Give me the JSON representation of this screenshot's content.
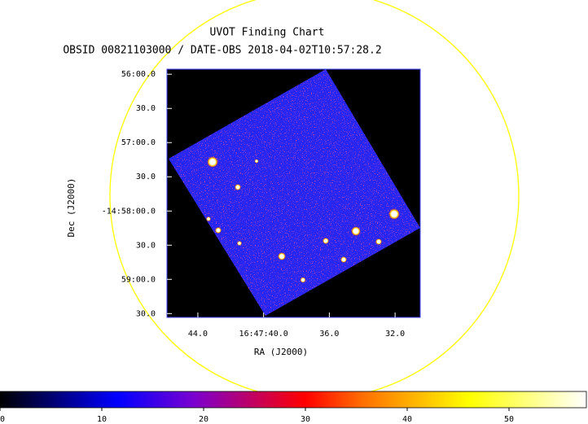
{
  "chart_data": {
    "type": "image",
    "title": "UVOT Finding Chart",
    "subtitle": "OBSID 00821103000 / DATE-OBS 2018-04-02T10:57:28.2",
    "xlabel": "RA (J2000)",
    "ylabel": "Dec (J2000)",
    "xlim": [
      45.88,
      30.47
    ],
    "xticks": [
      {
        "value": 44,
        "label": "44.0"
      },
      {
        "value": 40,
        "label": "16:47:40.0"
      },
      {
        "value": 36,
        "label": "36.0"
      },
      {
        "value": 32,
        "label": "32.0"
      }
    ],
    "ylim": [
      -14.9321,
      -14.9926
    ],
    "yticks": [
      {
        "value": -14.93333,
        "label": "56:00.0"
      },
      {
        "value": -14.94167,
        "label": "30.0"
      },
      {
        "value": -14.95,
        "label": "57:00.0"
      },
      {
        "value": -14.95833,
        "label": "30.0"
      },
      {
        "value": -14.96667,
        "label": "-14:58:00.0"
      },
      {
        "value": -14.975,
        "label": "30.0"
      },
      {
        "value": -14.98333,
        "label": "59:00.0"
      },
      {
        "value": -14.99167,
        "label": "30.0"
      }
    ],
    "clim": [
      0,
      57.6
    ],
    "cticks": [
      0,
      10,
      20,
      30,
      40,
      50
    ]
  }
}
